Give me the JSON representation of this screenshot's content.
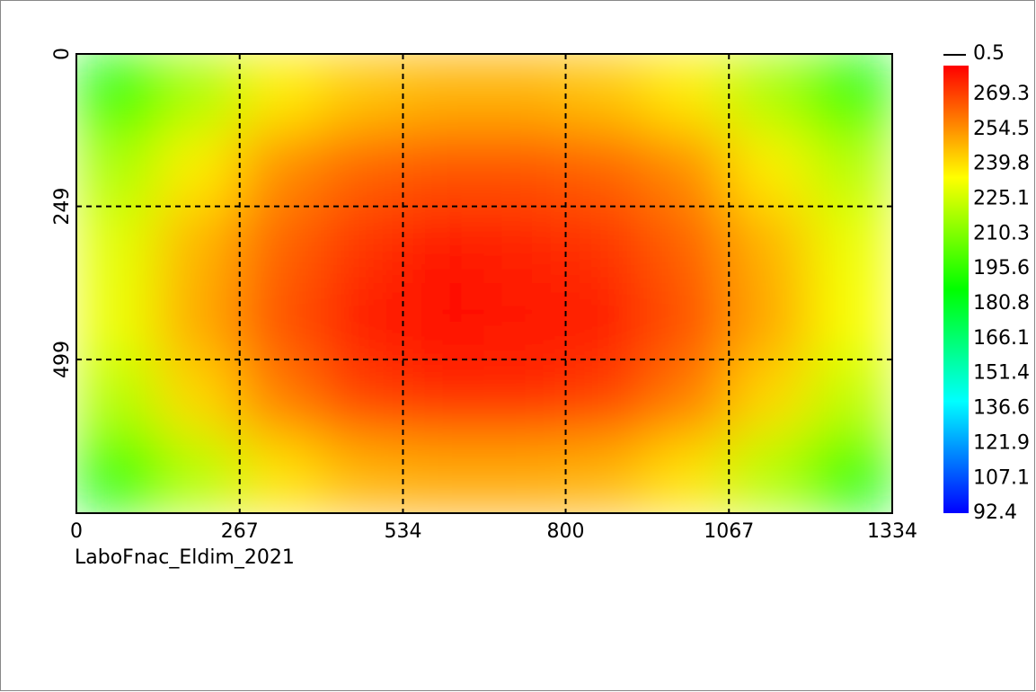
{
  "chart_data": {
    "type": "heatmap",
    "caption": "LaboFnac_Eldim_2021",
    "xlim": [
      0,
      1334
    ],
    "xticks": [
      0,
      267,
      534,
      800,
      1067,
      1334
    ],
    "ylim": [
      0,
      750
    ],
    "yticks": [
      0,
      249,
      499
    ],
    "grid": true,
    "z": [
      [
        185,
        210,
        228,
        235,
        238,
        238,
        235,
        228,
        210,
        185
      ],
      [
        210,
        228,
        245,
        252,
        255,
        255,
        252,
        245,
        228,
        212
      ],
      [
        220,
        238,
        252,
        260,
        265,
        263,
        260,
        252,
        238,
        222
      ],
      [
        222,
        240,
        255,
        264,
        268,
        266,
        264,
        255,
        240,
        224
      ],
      [
        212,
        232,
        248,
        258,
        262,
        262,
        258,
        248,
        232,
        214
      ],
      [
        185,
        212,
        230,
        238,
        240,
        240,
        238,
        230,
        212,
        185
      ]
    ],
    "colormap": [
      "#0000ff",
      "#00ffff",
      "#00ff00",
      "#ffff00",
      "#ff0000"
    ],
    "colorbar": {
      "marker": 0.5,
      "ticks": [
        269.3,
        254.5,
        239.8,
        225.1,
        210.3,
        195.6,
        180.8,
        166.1,
        151.4,
        136.6,
        121.9,
        107.1,
        92.4
      ]
    }
  }
}
